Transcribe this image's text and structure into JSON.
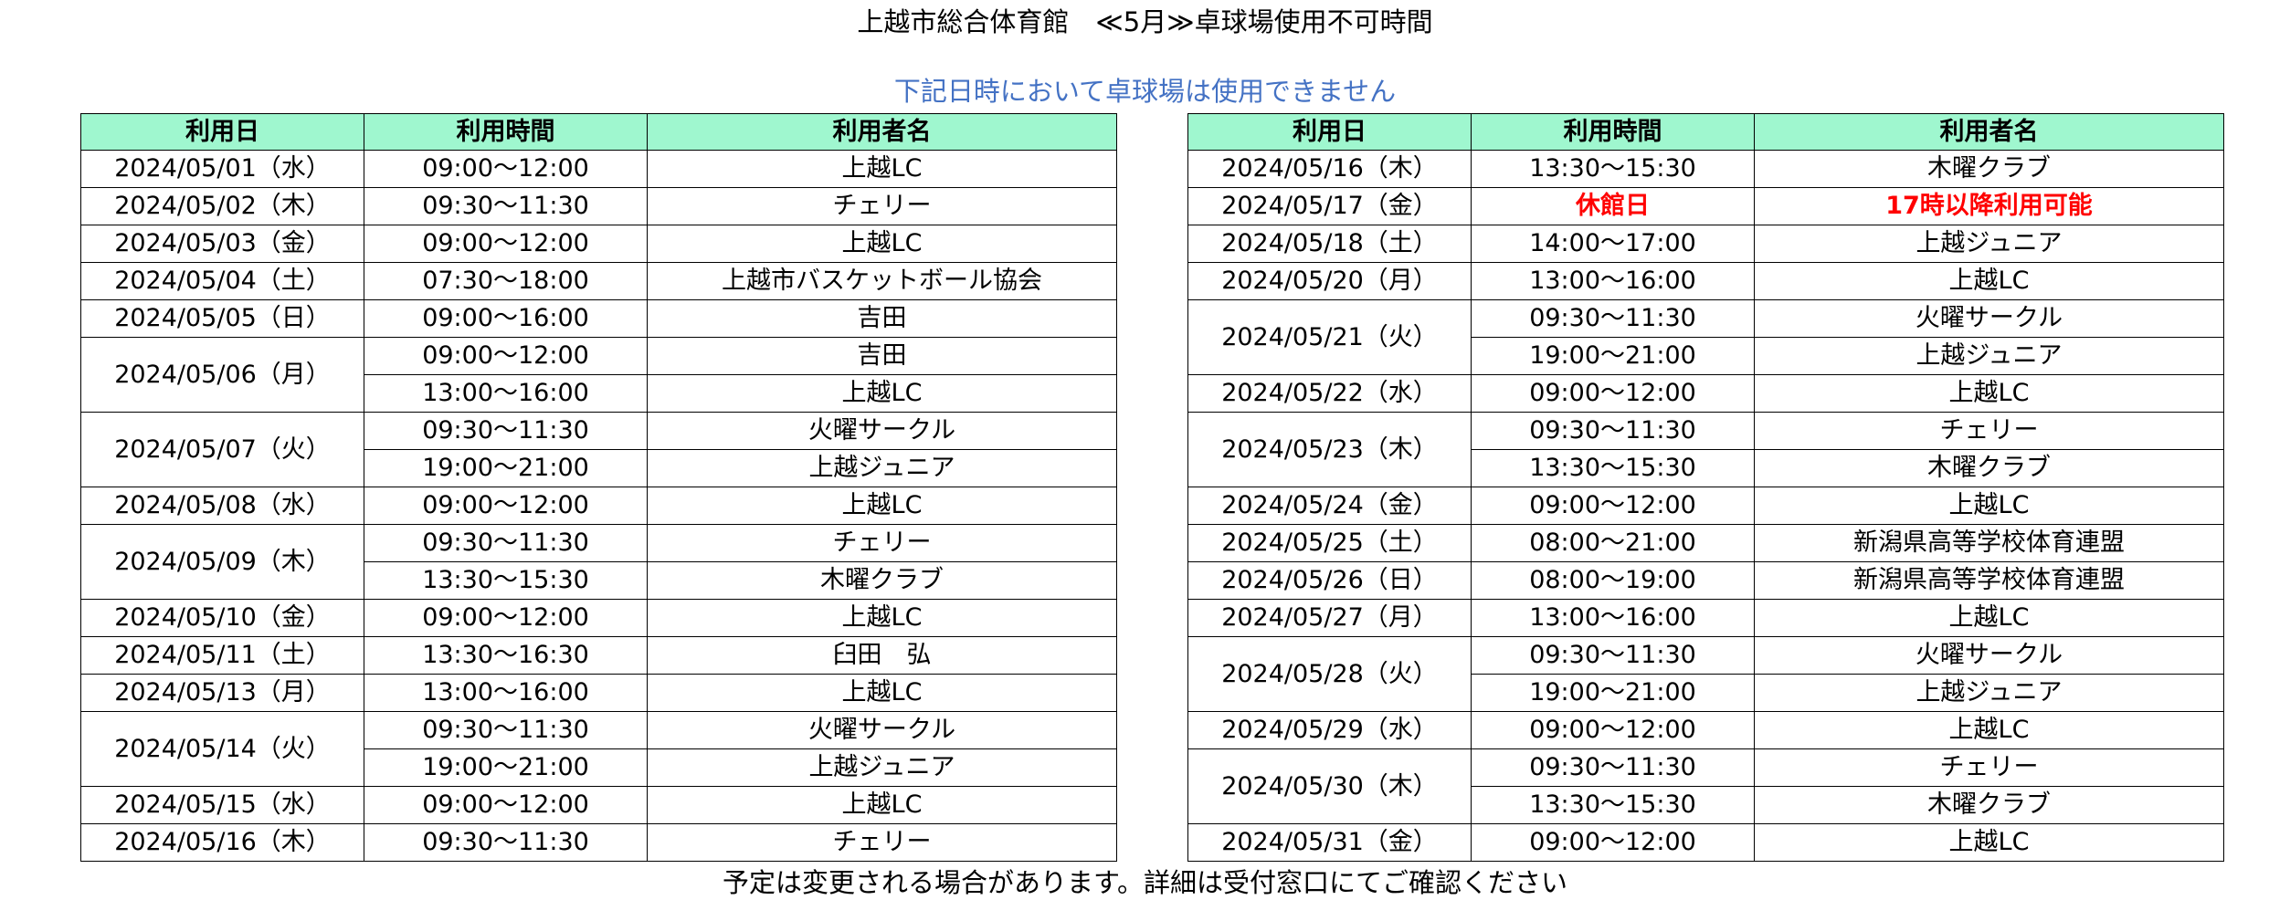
{
  "title": "上越市総合体育館　≪5月≫卓球場使用不可時間",
  "subtitle": "下記日時において卓球場は使用できません",
  "footer": "予定は変更される場合があります。詳細は受付窓口にてご確認ください",
  "columns": [
    "利用日",
    "利用時間",
    "利用者名"
  ],
  "closed_color": "#ff0000",
  "header_color": "#9ff7cf",
  "left_table": [
    {
      "date": "2024/05/01（水）",
      "slots": [
        {
          "time": "09:00～12:00",
          "user": "上越LC"
        }
      ]
    },
    {
      "date": "2024/05/02（木）",
      "slots": [
        {
          "time": "09:30～11:30",
          "user": "チェリー"
        }
      ]
    },
    {
      "date": "2024/05/03（金）",
      "slots": [
        {
          "time": "09:00～12:00",
          "user": "上越LC"
        }
      ]
    },
    {
      "date": "2024/05/04（土）",
      "slots": [
        {
          "time": "07:30～18:00",
          "user": "上越市バスケットボール協会"
        }
      ]
    },
    {
      "date": "2024/05/05（日）",
      "slots": [
        {
          "time": "09:00～16:00",
          "user": "吉田"
        }
      ]
    },
    {
      "date": "2024/05/06（月）",
      "slots": [
        {
          "time": "09:00～12:00",
          "user": "吉田"
        },
        {
          "time": "13:00～16:00",
          "user": "上越LC"
        }
      ]
    },
    {
      "date": "2024/05/07（火）",
      "slots": [
        {
          "time": "09:30～11:30",
          "user": "火曜サークル"
        },
        {
          "time": "19:00～21:00",
          "user": "上越ジュニア"
        }
      ]
    },
    {
      "date": "2024/05/08（水）",
      "slots": [
        {
          "time": "09:00～12:00",
          "user": "上越LC"
        }
      ]
    },
    {
      "date": "2024/05/09（木）",
      "slots": [
        {
          "time": "09:30～11:30",
          "user": "チェリー"
        },
        {
          "time": "13:30～15:30",
          "user": "木曜クラブ"
        }
      ]
    },
    {
      "date": "2024/05/10（金）",
      "slots": [
        {
          "time": "09:00～12:00",
          "user": "上越LC"
        }
      ]
    },
    {
      "date": "2024/05/11（土）",
      "slots": [
        {
          "time": "13:30～16:30",
          "user": "臼田　弘"
        }
      ]
    },
    {
      "date": "2024/05/13（月）",
      "slots": [
        {
          "time": "13:00～16:00",
          "user": "上越LC"
        }
      ]
    },
    {
      "date": "2024/05/14（火）",
      "slots": [
        {
          "time": "09:30～11:30",
          "user": "火曜サークル"
        },
        {
          "time": "19:00～21:00",
          "user": "上越ジュニア"
        }
      ]
    },
    {
      "date": "2024/05/15（水）",
      "slots": [
        {
          "time": "09:00～12:00",
          "user": "上越LC"
        }
      ]
    },
    {
      "date": "2024/05/16（木）",
      "slots": [
        {
          "time": "09:30～11:30",
          "user": "チェリー"
        }
      ]
    }
  ],
  "right_table": [
    {
      "date": "2024/05/16（木）",
      "slots": [
        {
          "time": "13:30～15:30",
          "user": "木曜クラブ"
        }
      ]
    },
    {
      "date": "2024/05/17（金）",
      "closed": true,
      "slots": [
        {
          "time": "休館日",
          "user": "17時以降利用可能"
        }
      ]
    },
    {
      "date": "2024/05/18（土）",
      "slots": [
        {
          "time": "14:00～17:00",
          "user": "上越ジュニア"
        }
      ]
    },
    {
      "date": "2024/05/20（月）",
      "slots": [
        {
          "time": "13:00～16:00",
          "user": "上越LC"
        }
      ]
    },
    {
      "date": "2024/05/21（火）",
      "slots": [
        {
          "time": "09:30～11:30",
          "user": "火曜サークル"
        },
        {
          "time": "19:00～21:00",
          "user": "上越ジュニア"
        }
      ]
    },
    {
      "date": "2024/05/22（水）",
      "slots": [
        {
          "time": "09:00～12:00",
          "user": "上越LC"
        }
      ]
    },
    {
      "date": "2024/05/23（木）",
      "slots": [
        {
          "time": "09:30～11:30",
          "user": "チェリー"
        },
        {
          "time": "13:30～15:30",
          "user": "木曜クラブ"
        }
      ]
    },
    {
      "date": "2024/05/24（金）",
      "slots": [
        {
          "time": "09:00～12:00",
          "user": "上越LC"
        }
      ]
    },
    {
      "date": "2024/05/25（土）",
      "slots": [
        {
          "time": "08:00～21:00",
          "user": "新潟県高等学校体育連盟"
        }
      ]
    },
    {
      "date": "2024/05/26（日）",
      "slots": [
        {
          "time": "08:00～19:00",
          "user": "新潟県高等学校体育連盟"
        }
      ]
    },
    {
      "date": "2024/05/27（月）",
      "slots": [
        {
          "time": "13:00～16:00",
          "user": "上越LC"
        }
      ]
    },
    {
      "date": "2024/05/28（火）",
      "slots": [
        {
          "time": "09:30～11:30",
          "user": "火曜サークル"
        },
        {
          "time": "19:00～21:00",
          "user": "上越ジュニア"
        }
      ]
    },
    {
      "date": "2024/05/29（水）",
      "slots": [
        {
          "time": "09:00～12:00",
          "user": "上越LC"
        }
      ]
    },
    {
      "date": "2024/05/30（木）",
      "slots": [
        {
          "time": "09:30～11:30",
          "user": "チェリー"
        },
        {
          "time": "13:30～15:30",
          "user": "木曜クラブ"
        }
      ]
    },
    {
      "date": "2024/05/31（金）",
      "slots": [
        {
          "time": "09:00～12:00",
          "user": "上越LC"
        }
      ]
    }
  ]
}
